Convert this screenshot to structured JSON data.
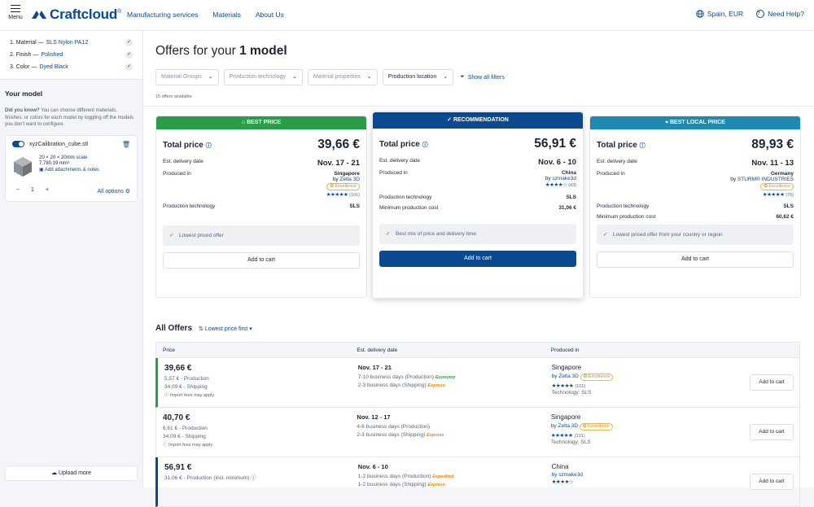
{
  "header": {
    "menu_label": "Menu",
    "logo": "Craftcloud",
    "logo_mark": "®",
    "nav": [
      "Manufacturing services",
      "Materials",
      "About Us"
    ],
    "locale": "Spain, EUR",
    "help": "Need Help?"
  },
  "sidebar": {
    "steps": [
      {
        "label": "1.  Material —",
        "value": "SLS Nylon PA12"
      },
      {
        "label": "2.  Finish —",
        "value": "Polished"
      },
      {
        "label": "3.  Color —",
        "value": "Dyed Black"
      }
    ],
    "your_model": "Your model",
    "did_you_know_title": "Did you know?",
    "did_you_know_text": "You can choose different materials, finishes, or colors for each model by toggling off the models you don't want to configure.",
    "model": {
      "file": "xyzCalibration_cube.stl",
      "dims": "20 × 20 × 20mm",
      "scale": "scale",
      "volume": "7,780.19 mm³",
      "attach": "Add attachments & notes",
      "qty": "1",
      "all_options": "All options"
    },
    "upload_more": "Upload more"
  },
  "main": {
    "title_prefix": "Offers for your",
    "title_bold": "1 model",
    "filters": [
      "Material Groups",
      "Production technology",
      "Material properties",
      "Production location"
    ],
    "show_all_filters": "Show all filters",
    "offers_available": "15 offers available",
    "cards": [
      {
        "header": "BEST PRICE",
        "header_color": "#2a9d48",
        "total_label": "Total price",
        "total": "39,66 €",
        "delivery_label": "Est. delivery date",
        "delivery": "Nov. 17 - 21",
        "produced_label": "Produced in",
        "country": "Singapore",
        "by": "by",
        "vendor": "Zelta 3D",
        "badge": "Excellence",
        "rating_count": "(101)",
        "tech_label": "Production technology",
        "tech": "SLS",
        "note": "Lowest priced offer",
        "cta": "Add to cart"
      },
      {
        "header": "RECOMMENDATION",
        "header_color": "#0b4a8f",
        "total_label": "Total price",
        "total": "56,91 €",
        "delivery_label": "Est. delivery date",
        "delivery": "Nov. 6 - 10",
        "produced_label": "Produced in",
        "country": "China",
        "by": "by",
        "vendor": "szmake3d",
        "rating_count": "(43)",
        "tech_label": "Production technology",
        "tech": "SLS",
        "min_label": "Minimum production cost",
        "min": "31,06 €",
        "note": "Best mix of price and delivery time",
        "cta": "Add to cart"
      },
      {
        "header": "BEST LOCAL PRICE",
        "header_color": "#1f8ab0",
        "total_label": "Total price",
        "total": "89,93 €",
        "delivery_label": "Est. delivery date",
        "delivery": "Nov. 11 - 13",
        "produced_label": "Produced in",
        "country": "Germany",
        "by": "by",
        "vendor": "STURM® INDUSTRIES",
        "badge": "Excellence",
        "rating_count": "(76)",
        "tech_label": "Production technology",
        "tech": "SLS",
        "min_label": "Minimum production cost",
        "min": "60,62 €",
        "note": "Lowest priced offer from your country or region",
        "cta": "Add to cart"
      }
    ],
    "all_offers": "All Offers",
    "sort": "Lowest price first",
    "columns": [
      "Price",
      "Est. delivery date",
      "Produced in"
    ],
    "rows": [
      {
        "price": "39,66 €",
        "production": "5,57 € - Production",
        "shipping": "34,09 € - Shipping",
        "import": "Import fees may apply",
        "delivery": "Nov. 17 - 21",
        "d1": "7-10 business days (Production)",
        "d1_tag": "Economy",
        "d2": "2-3 business days (Shipping)",
        "d2_tag": "Express",
        "country": "Singapore",
        "vendor": "by Zelta 3D",
        "badge": "Excellence",
        "rating_count": "(101)",
        "tech": "Technology: SLS",
        "cta": "Add to cart"
      },
      {
        "price": "40,70 €",
        "production": "6,61 € - Production",
        "shipping": "34,09 € - Shipping",
        "import": "Import fees may apply",
        "delivery": "Nov. 12 - 17",
        "d1": "4-6 business days (Production)",
        "d2": "2-3 business days (Shipping)",
        "d2_tag": "Express",
        "country": "Singapore",
        "vendor": "by Zelta 3D",
        "badge": "Excellence",
        "rating_count": "(101)",
        "tech": "Technology: SLS",
        "cta": "Add to cart"
      },
      {
        "price": "56,91 €",
        "production": "31,06 € - Production (incl. minimum)",
        "delivery": "Nov. 6 - 10",
        "d1": "1-2 business days (Production)",
        "d1_tag": "Expedited",
        "d2": "1-2 business days (Shipping)",
        "d2_tag": "Express",
        "country": "China",
        "vendor": "by szmake3d",
        "cta": "Add to cart"
      }
    ]
  }
}
